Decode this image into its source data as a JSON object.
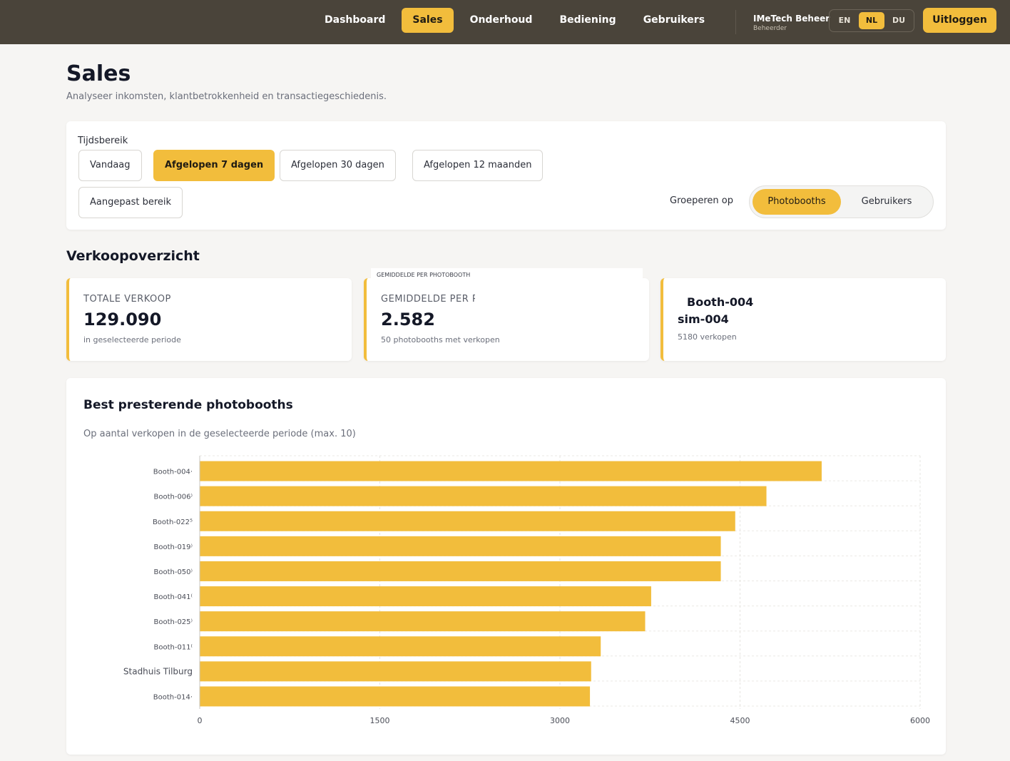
{
  "nav": {
    "items": [
      {
        "label": "Dashboard",
        "active": false
      },
      {
        "label": "Sales",
        "active": true
      },
      {
        "label": "Onderhoud",
        "active": false
      },
      {
        "label": "Bediening",
        "active": false
      },
      {
        "label": "Gebruikers",
        "active": false
      }
    ],
    "user_name": "IMeTech Beheer",
    "user_role": "Beheerder",
    "languages": [
      {
        "label": "EN",
        "active": false
      },
      {
        "label": "NL",
        "active": true
      },
      {
        "label": "DU",
        "active": false
      }
    ],
    "logout_label": "Uitloggen"
  },
  "header": {
    "title": "Sales",
    "subtitle": "Analyseer inkomsten, klantbetrokkenheid en transactiegeschiedenis."
  },
  "filters": {
    "label": "Tijdsbereik",
    "ranges": [
      {
        "label": "Vandaag",
        "active": false
      },
      {
        "label": "Afgelopen 7 dagen",
        "active": true
      },
      {
        "label": "Afgelopen 30 dagen",
        "active": false
      },
      {
        "label": "Afgelopen 12 maanden",
        "active": false
      },
      {
        "label": "Aangepast bereik",
        "active": false
      }
    ],
    "group_label": "Groeperen op",
    "group_options": [
      {
        "label": "Photobooths",
        "active": true
      },
      {
        "label": "Gebruikers",
        "active": false
      }
    ]
  },
  "overview": {
    "title": "Verkoopoverzicht",
    "total": {
      "label": "TOTALE VERKOOP",
      "value": "129.090",
      "note": "in geselecteerde periode"
    },
    "average": {
      "label": "GEMIDDELDE PER PHOTOBOOTH",
      "value": "2.582",
      "note": "50 photobooths met verkopen",
      "tooltip": "GEMIDDELDE PER PHOTOBOOTH"
    },
    "best": {
      "name": "Booth-004",
      "sub": "sim-004",
      "note": "5180 verkopen"
    }
  },
  "top_chart": {
    "title": "Best presterende photobooths",
    "subtitle": "Op aantal verkopen in de geselecteerde periode (max. 10)"
  },
  "colors": {
    "accent": "#f2bd3c",
    "topbar": "#4a443a",
    "bar": "#f2bd3c"
  },
  "chart_data": {
    "type": "bar",
    "orientation": "horizontal",
    "categories": [
      "Booth-004",
      "Booth-006",
      "Booth-022",
      "Booth-019",
      "Booth-050",
      "Booth-041",
      "Booth-025",
      "Booth-011",
      "Stadhuis Tilburg",
      "Booth-014"
    ],
    "category_labels": [
      "Booth-004·",
      "Booth-006⁾",
      "Booth-022⁵",
      "Booth-019⁾",
      "Booth-050⁾",
      "Booth-041⁽",
      "Booth-025⁾",
      "Booth-011⁽",
      "Stadhuis Tilburg",
      "Booth-014·"
    ],
    "values": [
      5180,
      4720,
      4460,
      4340,
      4340,
      3760,
      3710,
      3340,
      3260,
      3250
    ],
    "xlim": [
      0,
      6000
    ],
    "xticks": [
      0,
      1500,
      3000,
      4500,
      6000
    ],
    "grid": true
  }
}
